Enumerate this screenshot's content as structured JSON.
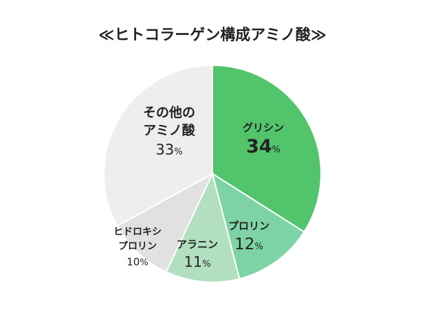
{
  "chart_data": {
    "type": "pie",
    "title": "≪ヒトコラーゲン構成アミノ酸≫",
    "start_angle_deg": 0,
    "direction": "clockwise",
    "slices": [
      {
        "label_lines": [
          "グリシン"
        ],
        "value": 34,
        "display_number": "34",
        "unit": "%",
        "color": "#52c46b"
      },
      {
        "label_lines": [
          "プロリン"
        ],
        "value": 12,
        "display_number": "12",
        "unit": "%",
        "color": "#7dd3a5"
      },
      {
        "label_lines": [
          "アラニン"
        ],
        "value": 11,
        "display_number": "11",
        "unit": "%",
        "color": "#b1dfbf"
      },
      {
        "label_lines": [
          "ヒドロキシ",
          "プロリン"
        ],
        "value": 10,
        "display_number": "10",
        "unit": "%",
        "color": "#e1e1e1"
      },
      {
        "label_lines": [
          "その他の",
          "アミノ酸"
        ],
        "value": 33,
        "display_number": "33",
        "unit": "%",
        "color": "#eeeeee"
      }
    ]
  }
}
